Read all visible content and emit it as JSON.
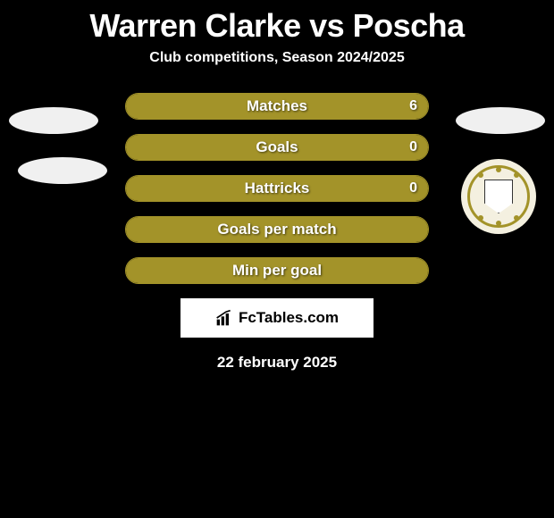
{
  "title": "Warren Clarke vs Poscha",
  "subtitle": "Club competitions, Season 2024/2025",
  "stats": [
    {
      "label": "Matches",
      "value_right": "6",
      "show_value": true,
      "fill_left_pct": 42,
      "fill_right_pct": 58
    },
    {
      "label": "Goals",
      "value_right": "0",
      "show_value": true,
      "fill_left_pct": 42,
      "fill_right_pct": 58
    },
    {
      "label": "Hattricks",
      "value_right": "0",
      "show_value": true,
      "fill_left_pct": 42,
      "fill_right_pct": 58
    },
    {
      "label": "Goals per match",
      "value_right": "",
      "show_value": false,
      "fill_left_pct": 100,
      "fill_right_pct": 0
    },
    {
      "label": "Min per goal",
      "value_right": "",
      "show_value": false,
      "fill_left_pct": 100,
      "fill_right_pct": 0
    }
  ],
  "footer": {
    "logo_text": "FcTables.com",
    "date": "22 february 2025"
  },
  "colors": {
    "bar_fill": "#a39329",
    "bar_border": "#a39329",
    "background": "#000000",
    "text": "#ffffff"
  }
}
